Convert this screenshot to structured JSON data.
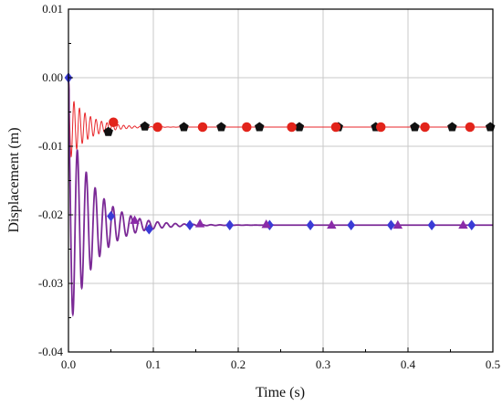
{
  "chart_data": {
    "type": "line",
    "title": "",
    "xlabel": "Time (s)",
    "ylabel": "Displacement (m)",
    "xlim": [
      0.0,
      0.5
    ],
    "ylim": [
      -0.04,
      0.01
    ],
    "x_ticks": [
      0.0,
      0.1,
      0.2,
      0.3,
      0.4,
      0.5
    ],
    "x_tick_labels": [
      "0.0",
      "0.1",
      "0.2",
      "0.3",
      "0.4",
      "0.5"
    ],
    "y_ticks": [
      0.01,
      0.0,
      -0.01,
      -0.02,
      -0.03,
      -0.04
    ],
    "y_tick_labels": [
      "0.01",
      "0.00",
      "-0.01",
      "-0.02",
      "-0.03",
      "-0.04"
    ],
    "grid": true,
    "legend": "none",
    "colors": {
      "upper_line": "#e8262a",
      "lower_line": "#7b2a96",
      "black_marker": "#111111",
      "red_marker": "#e2241b",
      "blue_marker": "#3a3bd6",
      "purple_marker": "#8a2ba8",
      "grid": "#c8c8c8"
    },
    "series": [
      {
        "kind": "damped-line",
        "color": "#e8262a",
        "final": -0.0072,
        "initial": 0.0,
        "first_trough": -0.0115,
        "period": 0.0065,
        "decay_time": 0.022
      },
      {
        "kind": "damped-line",
        "color": "#7b2a96",
        "final": -0.0215,
        "initial": 0.0,
        "first_trough": -0.0345,
        "period": 0.0105,
        "decay_time": 0.03
      },
      {
        "kind": "markers",
        "shape": "pentagon",
        "color": "#111111",
        "x": [
          0.047,
          0.09,
          0.136,
          0.18,
          0.225,
          0.272,
          0.318,
          0.362,
          0.408,
          0.452,
          0.497
        ],
        "y": [
          -0.0079,
          -0.0071,
          -0.0072,
          -0.0072,
          -0.0072,
          -0.0072,
          -0.0072,
          -0.0072,
          -0.0072,
          -0.0072,
          -0.0072
        ]
      },
      {
        "kind": "markers",
        "shape": "circle",
        "color": "#e2241b",
        "x": [
          0.053,
          0.105,
          0.158,
          0.21,
          0.263,
          0.315,
          0.368,
          0.42,
          0.473
        ],
        "y": [
          -0.0065,
          -0.0072,
          -0.0072,
          -0.0072,
          -0.0072,
          -0.0072,
          -0.0072,
          -0.0072,
          -0.0072
        ]
      },
      {
        "kind": "markers",
        "shape": "diamond",
        "color": "#3a3bd6",
        "x": [
          0.0,
          0.05,
          0.095,
          0.143,
          0.19,
          0.237,
          0.285,
          0.333,
          0.38,
          0.428,
          0.475
        ],
        "y": [
          0.0,
          -0.0202,
          -0.0221,
          -0.0215,
          -0.0215,
          -0.0215,
          -0.0215,
          -0.0215,
          -0.0215,
          -0.0215,
          -0.0215
        ]
      },
      {
        "kind": "markers",
        "shape": "triangle",
        "color": "#8a2ba8",
        "x": [
          0.078,
          0.155,
          0.233,
          0.31,
          0.388,
          0.465
        ],
        "y": [
          -0.0208,
          -0.0213,
          -0.0214,
          -0.0215,
          -0.0215,
          -0.0215
        ]
      }
    ]
  }
}
